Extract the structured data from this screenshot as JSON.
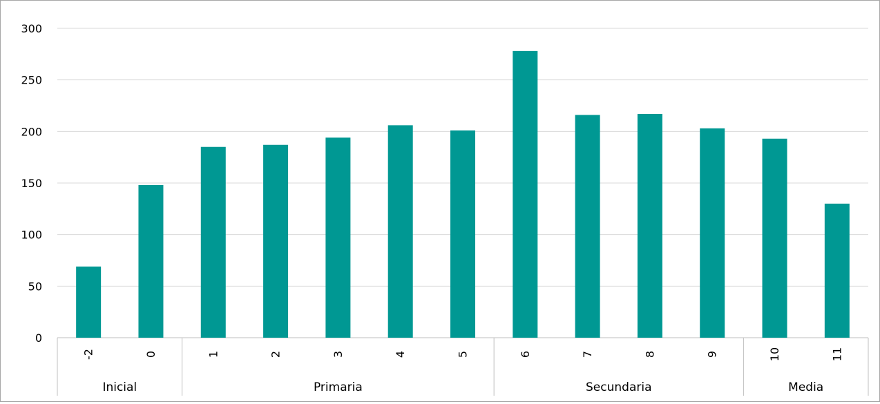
{
  "chart_data": {
    "type": "bar",
    "categories": [
      "-2",
      "0",
      "1",
      "2",
      "3",
      "4",
      "5",
      "6",
      "7",
      "8",
      "9",
      "10",
      "11"
    ],
    "groups": [
      {
        "label": "Inicial",
        "categories": [
          "-2",
          "0"
        ]
      },
      {
        "label": "Primaria",
        "categories": [
          "1",
          "2",
          "3",
          "4",
          "5"
        ]
      },
      {
        "label": "Secundaria",
        "categories": [
          "6",
          "7",
          "8",
          "9"
        ]
      },
      {
        "label": "Media",
        "categories": [
          "10",
          "11"
        ]
      }
    ],
    "values": [
      69,
      148,
      185,
      187,
      194,
      206,
      201,
      278,
      216,
      217,
      203,
      193,
      130
    ],
    "ylim": [
      0,
      300
    ],
    "yticks": [
      0,
      50,
      100,
      150,
      200,
      250,
      300
    ],
    "grid": true,
    "bar_color": "#009893",
    "title": "",
    "xlabel": "",
    "ylabel": ""
  }
}
